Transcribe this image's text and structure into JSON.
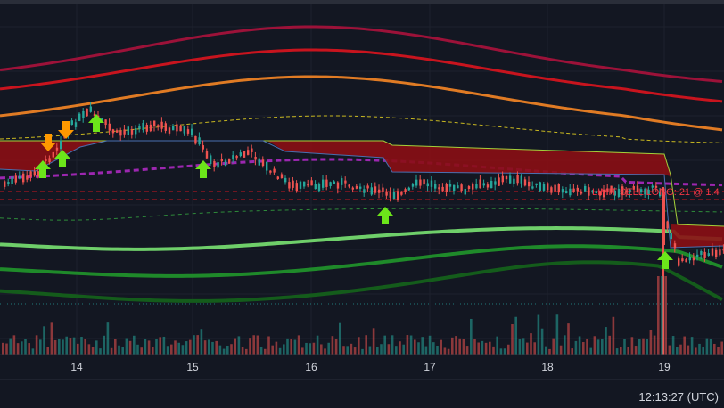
{
  "chart_data": {
    "type": "candlestick",
    "x_ticks": [
      "14",
      "15",
      "16",
      "17",
      "18",
      "19"
    ],
    "order_line_label": "LIMIT SELL LONG: 21 @ 1.4",
    "clock_text": "12:13:27 (UTC)",
    "colors": {
      "background": "#131722",
      "bull": "#26a69a",
      "bear": "#ef5350",
      "cloud": "#8b0e14",
      "band_crimson": "#9c1239",
      "band_red": "#c8141e",
      "band_orange": "#e07b24",
      "band_lightgreen": "#6fcf6a",
      "band_green": "#1f8a2a",
      "band_darkgreen": "#145c1b",
      "purple": "#9c27b0",
      "buy_arrow": "#6ce51a",
      "sell_arrow": "#ff9800"
    }
  }
}
